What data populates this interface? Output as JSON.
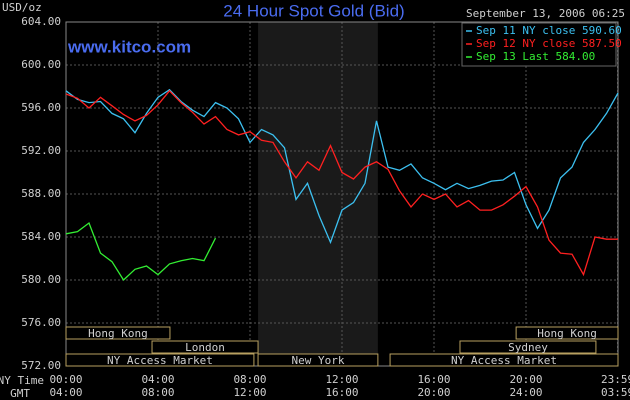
{
  "chart_data": {
    "type": "line",
    "title": "24 Hour Spot Gold (Bid)",
    "subtitle": "September 13, 2006 06:25",
    "y_label": "USD/oz",
    "watermark": "www.kitco.com",
    "x_label": "NY Time",
    "x2_label": "GMT",
    "x": [
      0,
      0.5,
      1,
      1.5,
      2,
      2.5,
      3,
      3.5,
      4,
      4.5,
      5,
      5.5,
      6,
      6.5,
      7,
      7.5,
      8,
      8.5,
      9,
      9.5,
      10,
      10.5,
      11,
      11.5,
      12,
      12.5,
      13,
      13.5,
      14,
      14.5,
      15,
      15.5,
      16,
      16.5,
      17,
      17.5,
      18,
      18.5,
      19,
      19.5,
      20,
      20.5,
      21,
      21.5,
      22,
      22.5,
      23,
      23.5,
      24
    ],
    "xlim": [
      0,
      24
    ],
    "xticks": [
      {
        "value": 0,
        "label": "00:00"
      },
      {
        "value": 4,
        "label": "04:00"
      },
      {
        "value": 8,
        "label": "08:00"
      },
      {
        "value": 12,
        "label": "12:00"
      },
      {
        "value": 16,
        "label": "16:00"
      },
      {
        "value": 20,
        "label": "20:00"
      },
      {
        "value": 23.983,
        "label": "23:59"
      }
    ],
    "x2ticks": [
      {
        "value": 0,
        "label": "04:00"
      },
      {
        "value": 4,
        "label": "08:00"
      },
      {
        "value": 8,
        "label": "12:00"
      },
      {
        "value": 12,
        "label": "16:00"
      },
      {
        "value": 16,
        "label": "20:00"
      },
      {
        "value": 20,
        "label": "24:00"
      },
      {
        "value": 23.983,
        "label": "03:59"
      }
    ],
    "ylim": [
      572,
      604
    ],
    "yticks": [
      {
        "value": 572,
        "label": "572.00"
      },
      {
        "value": 576,
        "label": "576.00"
      },
      {
        "value": 580,
        "label": "580.00"
      },
      {
        "value": 584,
        "label": "584.00"
      },
      {
        "value": 588,
        "label": "588.00"
      },
      {
        "value": 592,
        "label": "592.00"
      },
      {
        "value": 596,
        "label": "596.00"
      },
      {
        "value": 600,
        "label": "600.00"
      },
      {
        "value": 604,
        "label": "604.00"
      }
    ],
    "grid": true,
    "legend": "upper right",
    "series": [
      {
        "name": "Sep 11 NY close 590.60",
        "color": "#3cc0f0",
        "values": [
          597.6,
          596.8,
          596.5,
          596.6,
          595.5,
          595.0,
          593.7,
          595.5,
          597.0,
          597.7,
          596.6,
          595.8,
          595.2,
          596.5,
          596.0,
          595.0,
          592.8,
          594.0,
          593.5,
          592.3,
          587.5,
          589.0,
          586.0,
          583.5,
          586.5,
          587.2,
          589.0,
          594.8,
          590.5,
          590.2,
          590.8,
          589.5,
          589.0,
          588.4,
          589.0,
          588.5,
          588.8,
          589.2,
          589.3,
          590.0,
          587.0,
          584.8,
          586.5,
          589.5,
          590.5,
          592.8,
          594.0,
          595.5,
          597.4
        ]
      },
      {
        "name": "Sep 12 NY close 587.50",
        "color": "#ff2020",
        "values": [
          597.3,
          596.9,
          596.0,
          597.0,
          596.2,
          595.4,
          594.8,
          595.3,
          596.3,
          597.6,
          596.5,
          595.6,
          594.5,
          595.2,
          594.0,
          593.5,
          593.8,
          593.0,
          592.8,
          591.0,
          589.5,
          591.0,
          590.2,
          592.5,
          590.0,
          589.4,
          590.5,
          591.0,
          590.3,
          588.3,
          586.8,
          588.0,
          587.5,
          588.0,
          586.8,
          587.4,
          586.5,
          586.5,
          587.0,
          587.8,
          588.7,
          586.8,
          583.7,
          582.5,
          582.4,
          580.5,
          584.0,
          583.8,
          583.8
        ]
      },
      {
        "name": "Sep 13 Last 584.00",
        "color": "#33ee33",
        "values": [
          584.3,
          584.5,
          585.3,
          582.5,
          581.7,
          580.0,
          581.0,
          581.3,
          580.5,
          581.5,
          581.8,
          582.0,
          581.8,
          583.9,
          null,
          null,
          null,
          null,
          null,
          null,
          null,
          null,
          null,
          null,
          null,
          null,
          null,
          null,
          null,
          null,
          null,
          null,
          null,
          null,
          null,
          null,
          null,
          null,
          null,
          null,
          null,
          null,
          null,
          null,
          null,
          null,
          null,
          null,
          null
        ]
      }
    ],
    "sessions": [
      [
        {
          "label": "Hong Kong",
          "start": 0,
          "end": 4.52
        },
        {
          "label": "Hong Kong",
          "start": 19.57,
          "end": 24
        }
      ],
      [
        {
          "label": "London",
          "start": 3.74,
          "end": 8.35
        },
        {
          "label": "Sydney",
          "start": 17.13,
          "end": 23.04
        }
      ],
      [
        {
          "label": "NY Access Market",
          "start": 0,
          "end": 8.17
        },
        {
          "label": "New York",
          "start": 8.35,
          "end": 13.56,
          "highlight": true
        },
        {
          "label": "NY Access Market",
          "start": 14.09,
          "end": 24
        }
      ]
    ]
  }
}
